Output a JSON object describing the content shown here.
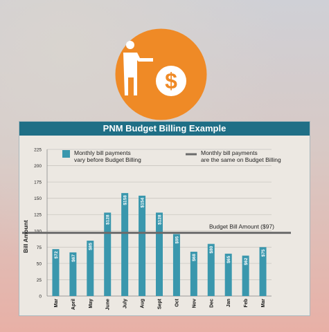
{
  "colors": {
    "logo_circle": "#ef8a26",
    "header_bg": "#1f6f86",
    "bar": "#3a97ad",
    "budget_line": "#6b6b6b"
  },
  "logo": {
    "icon": "presenter-dollar-icon"
  },
  "chart_data": {
    "type": "bar",
    "title": "PNM Budget Billing Example",
    "ylabel": "Bill Amount",
    "xlabel": "",
    "ylim": [
      0,
      225
    ],
    "yticks": [
      0,
      25,
      50,
      75,
      100,
      125,
      150,
      175,
      200,
      225
    ],
    "grid": true,
    "categories": [
      "Mar",
      "April",
      "May",
      "June",
      "July",
      "Aug",
      "Sept",
      "Oct",
      "Nov",
      "Dec",
      "Jan",
      "Feb",
      "Mar"
    ],
    "values": [
      72,
      67,
      85,
      128,
      158,
      154,
      128,
      95,
      68,
      80,
      65,
      62,
      75
    ],
    "data_labels": [
      "$72",
      "$67",
      "$85",
      "$128",
      "$158",
      "$154",
      "$128",
      "$95",
      "$68",
      "$80",
      "$65",
      "$62",
      "$75"
    ],
    "budget_line": {
      "value": 97,
      "label": "Budget Bill Amount ($97)"
    },
    "legend": {
      "placement": "top",
      "items": [
        {
          "symbol": "square",
          "line1": "Monthly bill payments",
          "line2": "vary before Budget Billing"
        },
        {
          "symbol": "line",
          "line1": "Monthly bill payments",
          "line2": "are the same on Budget Billing"
        }
      ]
    }
  }
}
